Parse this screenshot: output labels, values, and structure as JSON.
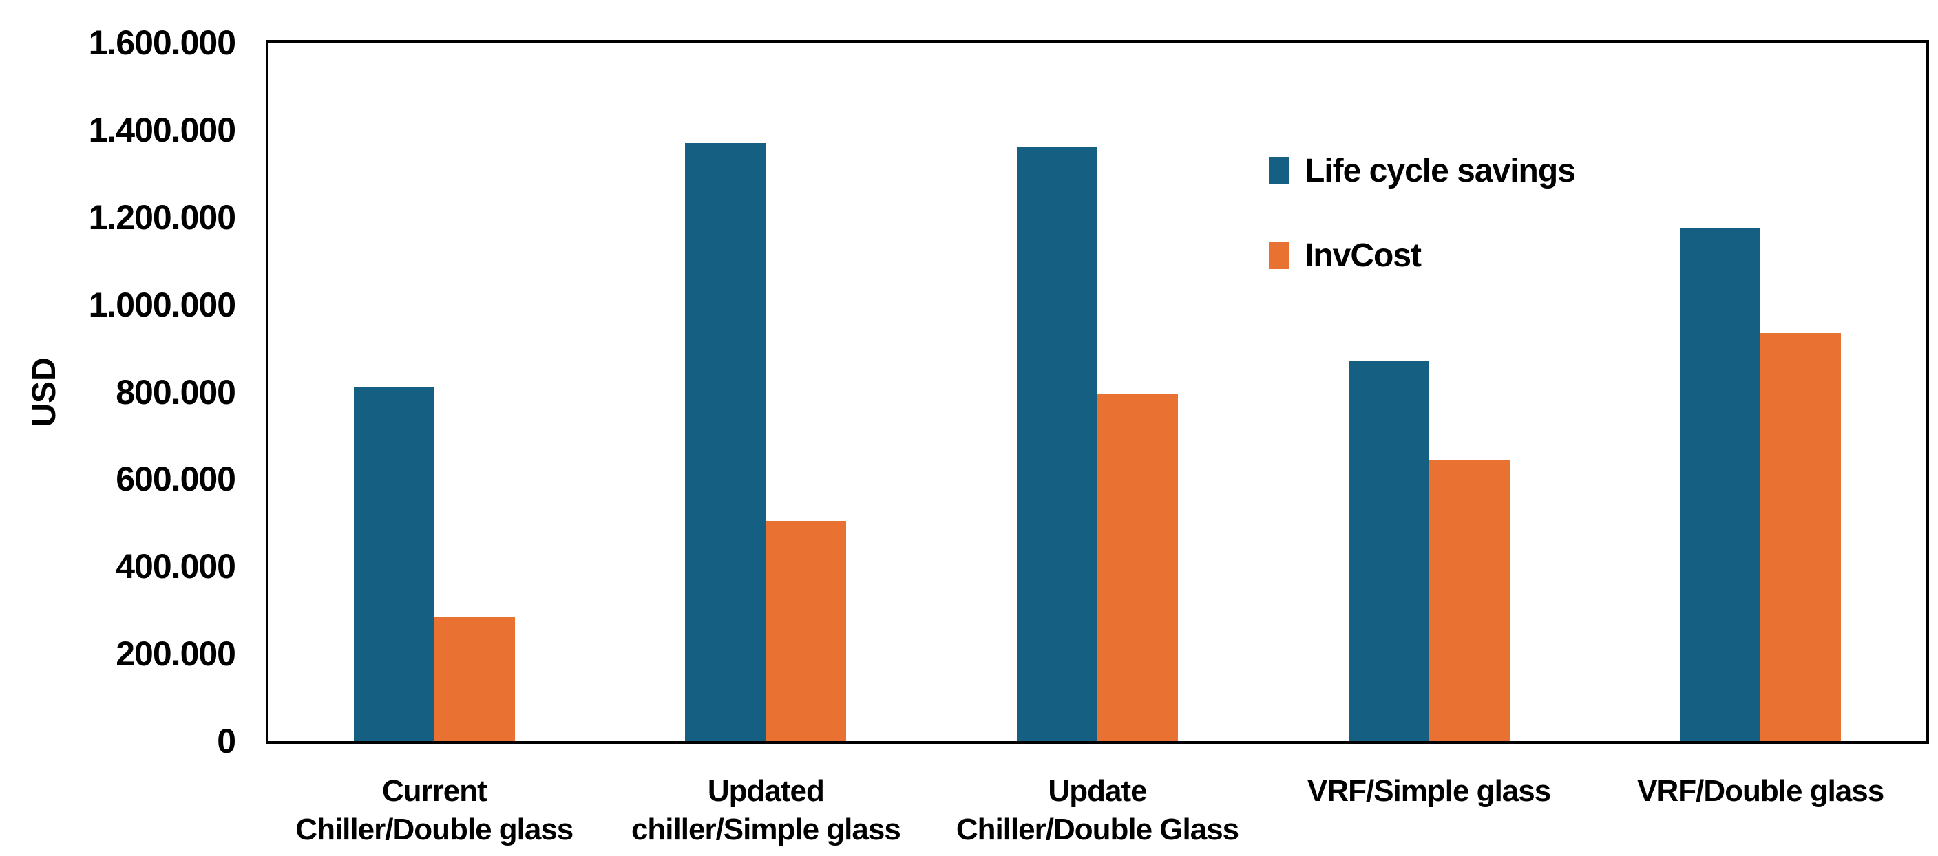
{
  "chart_data": {
    "type": "bar",
    "title": "",
    "ylabel": "USD",
    "xlabel": "",
    "grid": false,
    "legend_position": "inside-upper-right",
    "ylim": [
      0,
      1600000
    ],
    "ytick_step": 200000,
    "ytick_labels": [
      "0",
      "200.000",
      "400.000",
      "600.000",
      "800.000",
      "1.000.000",
      "1.200.000",
      "1.400.000",
      "1.600.000"
    ],
    "categories": [
      [
        "Current",
        "Chiller/Double glass"
      ],
      [
        "Updated",
        "chiller/Simple glass"
      ],
      [
        "Update",
        "Chiller/Double Glass"
      ],
      [
        "VRF/Simple glass"
      ],
      [
        "VRF/Double glass"
      ]
    ],
    "series": [
      {
        "name": "Life cycle savings",
        "color": "#156082",
        "values": [
          810000,
          1370000,
          1360000,
          870000,
          1175000
        ]
      },
      {
        "name": "InvCost",
        "color": "#E97132",
        "values": [
          285000,
          505000,
          795000,
          645000,
          935000
        ]
      }
    ]
  },
  "colors": {
    "axis_frame": "#000000",
    "background": "#FFFFFF",
    "text": "#000000",
    "series1": "#156082",
    "series2": "#E97132"
  }
}
